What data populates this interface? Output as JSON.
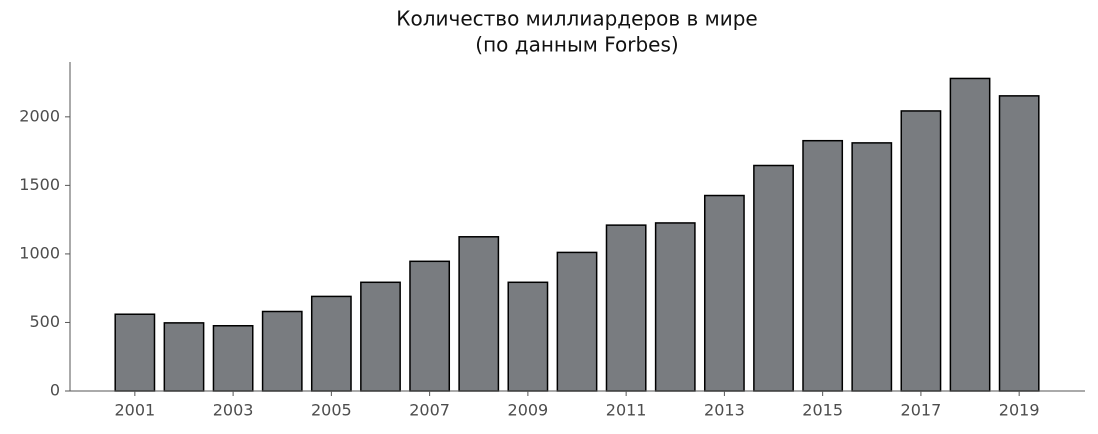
{
  "chart_data": {
    "type": "bar",
    "title": "Количество миллиардеров в мире",
    "subtitle": "(по данным Forbes)",
    "x": [
      2001,
      2002,
      2003,
      2004,
      2005,
      2006,
      2007,
      2008,
      2009,
      2010,
      2011,
      2012,
      2013,
      2014,
      2015,
      2016,
      2017,
      2018,
      2019
    ],
    "values": [
      560,
      497,
      476,
      580,
      690,
      793,
      946,
      1125,
      793,
      1011,
      1210,
      1226,
      1426,
      1645,
      1826,
      1810,
      2043,
      2280,
      2153
    ],
    "color": "#797c80",
    "xlim": [
      1999.68,
      2020.34
    ],
    "xticks": [
      2001,
      2003,
      2005,
      2007,
      2009,
      2011,
      2013,
      2015,
      2017,
      2019
    ],
    "ylim": [
      0,
      2400
    ],
    "yticks": [
      0,
      500,
      1000,
      1500,
      2000
    ],
    "grid": false
  }
}
